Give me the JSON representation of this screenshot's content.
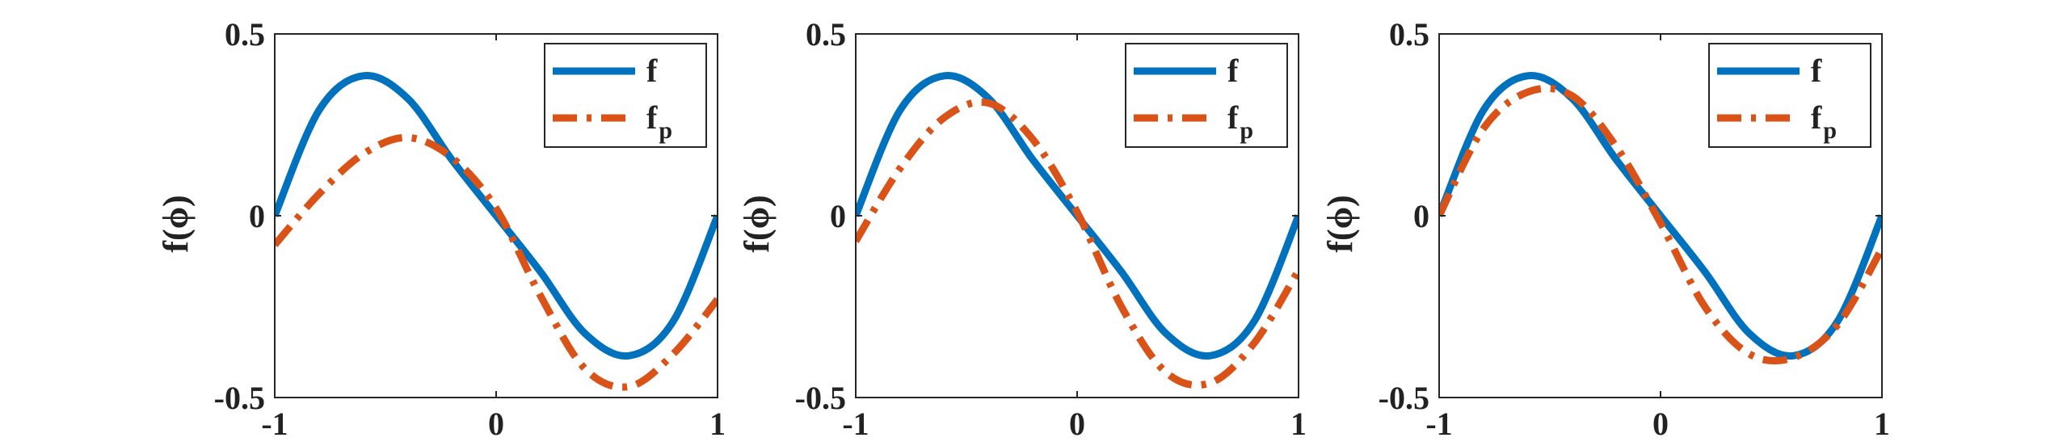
{
  "chart_data": [
    {
      "type": "line",
      "ylabel": "f(ϕ)",
      "xlim": [
        -1,
        1
      ],
      "ylim": [
        -0.5,
        0.5
      ],
      "xticks": [
        "-1",
        "0",
        "1"
      ],
      "yticks": [
        "0.5",
        "0",
        "-0.5"
      ],
      "legend_position": "top-right",
      "series": [
        {
          "name": "f",
          "color": "#0072BD",
          "line_style": "solid",
          "x": [
            -1,
            -0.8,
            -0.6,
            -0.4,
            -0.2,
            0,
            0.2,
            0.4,
            0.6,
            0.8,
            1
          ],
          "y": [
            0,
            0.29,
            0.385,
            0.323,
            0.154,
            0,
            -0.154,
            -0.323,
            -0.385,
            -0.29,
            0
          ]
        },
        {
          "name": "fp",
          "color": "#D95319",
          "line_style": "dashdot",
          "x": [
            -1,
            -0.8,
            -0.6,
            -0.4,
            -0.2,
            0,
            0.2,
            0.4,
            0.6,
            0.8,
            1
          ],
          "y": [
            -0.08,
            0.06,
            0.17,
            0.215,
            0.16,
            0.02,
            -0.22,
            -0.42,
            -0.47,
            -0.38,
            -0.23
          ]
        }
      ]
    },
    {
      "type": "line",
      "ylabel": "f(ϕ)",
      "xlim": [
        -1,
        1
      ],
      "ylim": [
        -0.5,
        0.5
      ],
      "xticks": [
        "-1",
        "0",
        "1"
      ],
      "yticks": [
        "0.5",
        "0",
        "-0.5"
      ],
      "legend_position": "top-right",
      "series": [
        {
          "name": "f",
          "color": "#0072BD",
          "line_style": "solid",
          "x": [
            -1,
            -0.8,
            -0.6,
            -0.4,
            -0.2,
            0,
            0.2,
            0.4,
            0.6,
            0.8,
            1
          ],
          "y": [
            0,
            0.29,
            0.385,
            0.323,
            0.154,
            0,
            -0.154,
            -0.323,
            -0.385,
            -0.29,
            0
          ]
        },
        {
          "name": "fp",
          "color": "#D95319",
          "line_style": "dashdot",
          "x": [
            -1,
            -0.8,
            -0.6,
            -0.4,
            -0.2,
            0,
            0.2,
            0.4,
            0.6,
            0.8,
            1
          ],
          "y": [
            -0.07,
            0.13,
            0.27,
            0.31,
            0.21,
            0.01,
            -0.25,
            -0.43,
            -0.46,
            -0.35,
            -0.15
          ]
        }
      ]
    },
    {
      "type": "line",
      "ylabel": "f(ϕ)",
      "xlim": [
        -1,
        1
      ],
      "ylim": [
        -0.5,
        0.5
      ],
      "xticks": [
        "-1",
        "0",
        "1"
      ],
      "yticks": [
        "0.5",
        "0",
        "-0.5"
      ],
      "legend_position": "top-right",
      "series": [
        {
          "name": "f",
          "color": "#0072BD",
          "line_style": "solid",
          "x": [
            -1,
            -0.8,
            -0.6,
            -0.4,
            -0.2,
            0,
            0.2,
            0.4,
            0.6,
            0.8,
            1
          ],
          "y": [
            0,
            0.29,
            0.385,
            0.323,
            0.154,
            0,
            -0.154,
            -0.323,
            -0.385,
            -0.29,
            0
          ]
        },
        {
          "name": "fp",
          "color": "#D95319",
          "line_style": "dashdot",
          "x": [
            -1,
            -0.8,
            -0.6,
            -0.4,
            -0.2,
            0,
            0.2,
            0.4,
            0.6,
            0.8,
            1
          ],
          "y": [
            0,
            0.24,
            0.34,
            0.33,
            0.19,
            -0.02,
            -0.25,
            -0.38,
            -0.39,
            -0.3,
            -0.09
          ]
        }
      ]
    }
  ]
}
